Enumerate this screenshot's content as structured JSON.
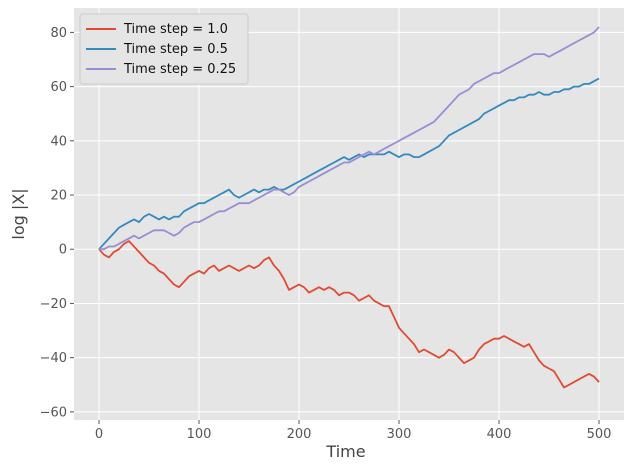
{
  "chart_data": {
    "type": "line",
    "title": "",
    "xlabel": "Time",
    "ylabel": "log |X|",
    "xlim": [
      -25,
      525
    ],
    "ylim": [
      -63,
      89
    ],
    "xticks": [
      0,
      100,
      200,
      300,
      400,
      500
    ],
    "yticks": [
      -60,
      -40,
      -20,
      0,
      20,
      40,
      60,
      80
    ],
    "grid": true,
    "legend_position": "top-left",
    "background": "#e5e5e5",
    "series": [
      {
        "name": "Time step = 1.0",
        "color": "#e24a33",
        "x": [
          0,
          5,
          10,
          15,
          20,
          25,
          30,
          35,
          40,
          45,
          50,
          55,
          60,
          65,
          70,
          75,
          80,
          85,
          90,
          95,
          100,
          105,
          110,
          115,
          120,
          125,
          130,
          135,
          140,
          145,
          150,
          155,
          160,
          165,
          170,
          175,
          180,
          185,
          190,
          195,
          200,
          205,
          210,
          215,
          220,
          225,
          230,
          235,
          240,
          245,
          250,
          255,
          260,
          265,
          270,
          275,
          280,
          285,
          290,
          295,
          300,
          305,
          310,
          315,
          320,
          325,
          330,
          335,
          340,
          345,
          350,
          355,
          360,
          365,
          370,
          375,
          380,
          385,
          390,
          395,
          400,
          405,
          410,
          415,
          420,
          425,
          430,
          435,
          440,
          445,
          450,
          455,
          460,
          465,
          470,
          475,
          480,
          485,
          490,
          495,
          500
        ],
        "y": [
          0,
          -2,
          -3,
          -1,
          0,
          2,
          3,
          1,
          -1,
          -3,
          -5,
          -6,
          -8,
          -9,
          -11,
          -13,
          -14,
          -12,
          -10,
          -9,
          -8,
          -9,
          -7,
          -6,
          -8,
          -7,
          -6,
          -7,
          -8,
          -7,
          -6,
          -7,
          -6,
          -4,
          -3,
          -6,
          -8,
          -11,
          -15,
          -14,
          -13,
          -14,
          -16,
          -15,
          -14,
          -15,
          -14,
          -15,
          -17,
          -16,
          -16,
          -17,
          -19,
          -18,
          -17,
          -19,
          -20,
          -21,
          -21,
          -25,
          -29,
          -31,
          -33,
          -35,
          -38,
          -37,
          -38,
          -39,
          -40,
          -39,
          -37,
          -38,
          -40,
          -42,
          -41,
          -40,
          -37,
          -35,
          -34,
          -33,
          -33,
          -32,
          -33,
          -34,
          -35,
          -36,
          -35,
          -38,
          -41,
          -43,
          -44,
          -45,
          -48,
          -51,
          -50,
          -49,
          -48,
          -47,
          -46,
          -47,
          -49
        ]
      },
      {
        "name": "Time step = 0.5",
        "color": "#348abd",
        "x": [
          0,
          5,
          10,
          15,
          20,
          25,
          30,
          35,
          40,
          45,
          50,
          55,
          60,
          65,
          70,
          75,
          80,
          85,
          90,
          95,
          100,
          105,
          110,
          115,
          120,
          125,
          130,
          135,
          140,
          145,
          150,
          155,
          160,
          165,
          170,
          175,
          180,
          185,
          190,
          195,
          200,
          205,
          210,
          215,
          220,
          225,
          230,
          235,
          240,
          245,
          250,
          255,
          260,
          265,
          270,
          275,
          280,
          285,
          290,
          295,
          300,
          305,
          310,
          315,
          320,
          325,
          330,
          335,
          340,
          345,
          350,
          355,
          360,
          365,
          370,
          375,
          380,
          385,
          390,
          395,
          400,
          405,
          410,
          415,
          420,
          425,
          430,
          435,
          440,
          445,
          450,
          455,
          460,
          465,
          470,
          475,
          480,
          485,
          490,
          495,
          500
        ],
        "y": [
          0,
          2,
          4,
          6,
          8,
          9,
          10,
          11,
          10,
          12,
          13,
          12,
          11,
          12,
          11,
          12,
          12,
          14,
          15,
          16,
          17,
          17,
          18,
          19,
          20,
          21,
          22,
          20,
          19,
          20,
          21,
          22,
          21,
          22,
          22,
          23,
          22,
          22,
          23,
          24,
          25,
          26,
          27,
          28,
          29,
          30,
          31,
          32,
          33,
          34,
          33,
          34,
          35,
          34,
          35,
          35,
          35,
          35,
          36,
          35,
          34,
          35,
          35,
          34,
          34,
          35,
          36,
          37,
          38,
          40,
          42,
          43,
          44,
          45,
          46,
          47,
          48,
          50,
          51,
          52,
          53,
          54,
          55,
          55,
          56,
          56,
          57,
          57,
          58,
          57,
          57,
          58,
          58,
          59,
          59,
          60,
          60,
          61,
          61,
          62,
          63
        ]
      },
      {
        "name": "Time step = 0.25",
        "color": "#988ed5",
        "x": [
          0,
          5,
          10,
          15,
          20,
          25,
          30,
          35,
          40,
          45,
          50,
          55,
          60,
          65,
          70,
          75,
          80,
          85,
          90,
          95,
          100,
          105,
          110,
          115,
          120,
          125,
          130,
          135,
          140,
          145,
          150,
          155,
          160,
          165,
          170,
          175,
          180,
          185,
          190,
          195,
          200,
          205,
          210,
          215,
          220,
          225,
          230,
          235,
          240,
          245,
          250,
          255,
          260,
          265,
          270,
          275,
          280,
          285,
          290,
          295,
          300,
          305,
          310,
          315,
          320,
          325,
          330,
          335,
          340,
          345,
          350,
          355,
          360,
          365,
          370,
          375,
          380,
          385,
          390,
          395,
          400,
          405,
          410,
          415,
          420,
          425,
          430,
          435,
          440,
          445,
          450,
          455,
          460,
          465,
          470,
          475,
          480,
          485,
          490,
          495,
          500
        ],
        "y": [
          0,
          0,
          1,
          1,
          2,
          3,
          4,
          5,
          4,
          5,
          6,
          7,
          7,
          7,
          6,
          5,
          6,
          8,
          9,
          10,
          10,
          11,
          12,
          13,
          14,
          14,
          15,
          16,
          17,
          17,
          17,
          18,
          19,
          20,
          21,
          22,
          22,
          21,
          20,
          21,
          23,
          24,
          25,
          26,
          27,
          28,
          29,
          30,
          31,
          32,
          32,
          33,
          34,
          35,
          36,
          35,
          36,
          37,
          38,
          39,
          40,
          41,
          42,
          43,
          44,
          45,
          46,
          47,
          49,
          51,
          53,
          55,
          57,
          58,
          59,
          61,
          62,
          63,
          64,
          65,
          65,
          66,
          67,
          68,
          69,
          70,
          71,
          72,
          72,
          72,
          71,
          72,
          73,
          74,
          75,
          76,
          77,
          78,
          79,
          80,
          82
        ]
      }
    ]
  }
}
